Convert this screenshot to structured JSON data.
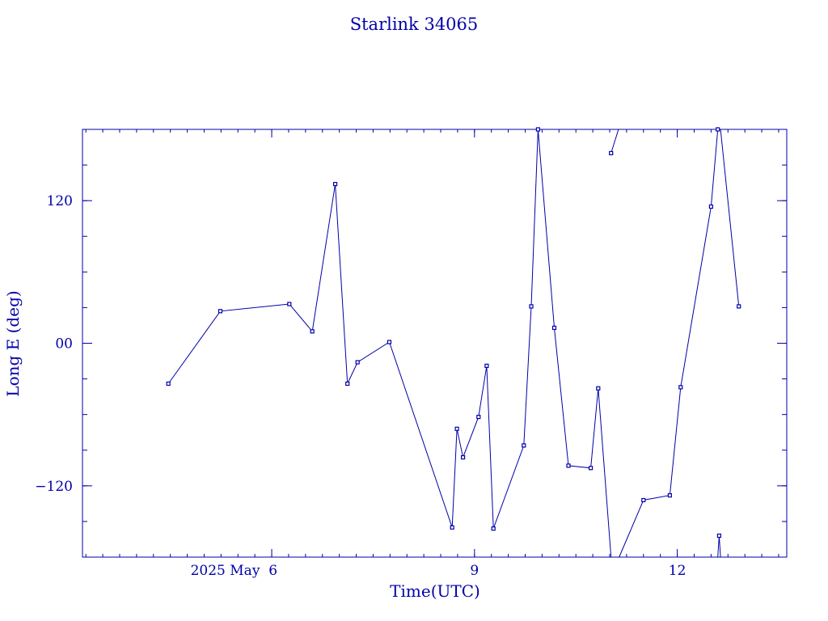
{
  "chart_data": {
    "type": "line",
    "title": "Starlink 34065",
    "xlabel": "Time(UTC)",
    "ylabel": "Long E (deg)",
    "color": "#0000aa",
    "grid": false,
    "legend": "none",
    "xlim": [
      3.2,
      13.62
    ],
    "ylim": [
      -180,
      180
    ],
    "x_ticks": [
      {
        "value": 6,
        "label": "2025 May  6"
      },
      {
        "value": 9,
        "label": "9"
      },
      {
        "value": 12,
        "label": "12"
      }
    ],
    "y_ticks": [
      {
        "value": 120,
        "label": "120"
      },
      {
        "value": 0,
        "label": "00"
      },
      {
        "value": -120,
        "label": "−120"
      }
    ],
    "x_minor_step": 0.25,
    "y_minor_step": 30,
    "series": [
      {
        "segments": [
          [
            [
              4.47,
              -34
            ],
            [
              5.24,
              27
            ],
            [
              6.26,
              33
            ],
            [
              6.6,
              10
            ],
            [
              6.94,
              134
            ],
            [
              7.12,
              -34
            ],
            [
              7.27,
              -16
            ],
            [
              7.74,
              1
            ],
            [
              8.67,
              -155
            ],
            [
              8.74,
              -72
            ],
            [
              8.83,
              -96
            ],
            [
              9.06,
              -62
            ],
            [
              9.18,
              -19
            ],
            [
              9.28,
              -156
            ],
            [
              9.73,
              -86
            ],
            [
              9.84,
              31
            ],
            [
              9.94,
              180
            ],
            [
              10.18,
              13
            ],
            [
              10.39,
              -103
            ],
            [
              10.72,
              -105
            ],
            [
              10.83,
              -38
            ],
            [
              11.02,
              -180
            ]
          ],
          [
            [
              11.02,
              160
            ],
            [
              11.13,
              180
            ]
          ],
          [
            [
              11.14,
              -180
            ],
            [
              11.5,
              -132
            ],
            [
              11.89,
              -128
            ],
            [
              12.05,
              -37
            ],
            [
              12.5,
              115
            ],
            [
              12.6,
              180
            ]
          ],
          [
            [
              12.6,
              -180
            ],
            [
              12.62,
              -162
            ],
            [
              12.64,
              -180
            ]
          ],
          [
            [
              12.64,
              180
            ],
            [
              12.91,
              31
            ]
          ]
        ],
        "markers": [
          [
            4.47,
            -34
          ],
          [
            5.24,
            27
          ],
          [
            6.26,
            33
          ],
          [
            6.6,
            10
          ],
          [
            6.94,
            134
          ],
          [
            7.12,
            -34
          ],
          [
            7.27,
            -16
          ],
          [
            7.74,
            1
          ],
          [
            8.67,
            -155
          ],
          [
            8.74,
            -72
          ],
          [
            8.83,
            -96
          ],
          [
            9.06,
            -62
          ],
          [
            9.18,
            -19
          ],
          [
            9.28,
            -156
          ],
          [
            9.73,
            -86
          ],
          [
            9.84,
            31
          ],
          [
            9.94,
            180
          ],
          [
            10.18,
            13
          ],
          [
            10.39,
            -103
          ],
          [
            10.72,
            -105
          ],
          [
            10.83,
            -38
          ],
          [
            11.02,
            160
          ],
          [
            11.5,
            -132
          ],
          [
            11.89,
            -128
          ],
          [
            12.05,
            -37
          ],
          [
            12.5,
            115
          ],
          [
            12.6,
            180
          ],
          [
            12.62,
            -162
          ],
          [
            12.91,
            31
          ]
        ]
      }
    ]
  }
}
